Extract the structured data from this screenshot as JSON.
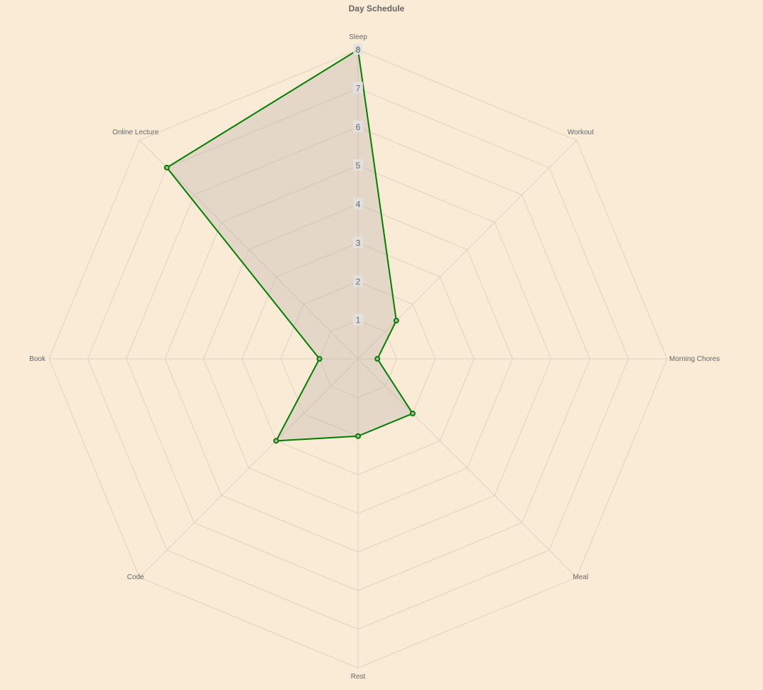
{
  "page": {
    "background": "#faebd7"
  },
  "chart_data": {
    "type": "radar",
    "title": "Day Schedule",
    "categories": [
      "Sleep",
      "Workout",
      "Morning Chores",
      "Meal",
      "Rest",
      "Code",
      "Book",
      "Online Lecture"
    ],
    "series": [
      {
        "values": [
          8,
          1.4,
          0.5,
          2,
          2,
          3,
          1,
          7
        ],
        "color": "#008000"
      }
    ],
    "rlim": [
      0,
      8
    ],
    "ticks": [
      1,
      2,
      3,
      4,
      5,
      6,
      7,
      8
    ],
    "grid": true,
    "grid_shape": "polygon",
    "start_angle_deg": -90,
    "direction": "clockwise"
  }
}
